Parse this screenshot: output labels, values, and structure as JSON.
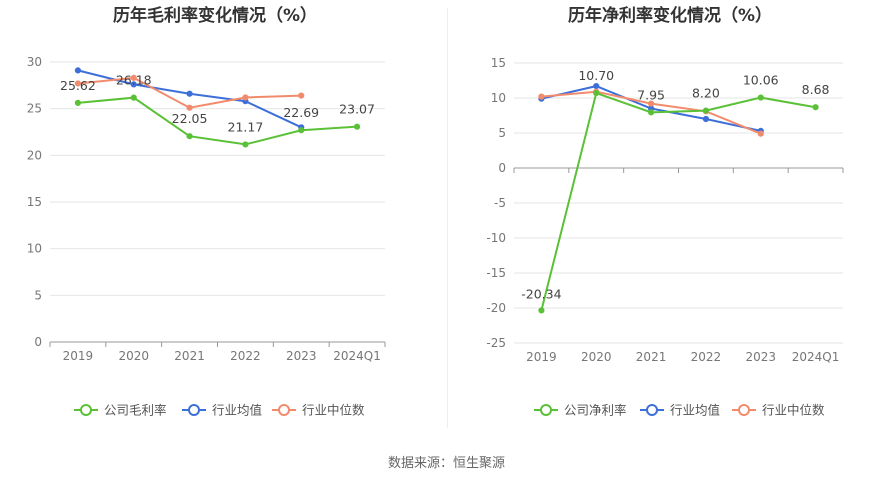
{
  "source_text": "数据来源：恒生聚源",
  "chart_data": [
    {
      "type": "line",
      "title": "历年毛利率变化情况（%）",
      "categories": [
        "2019",
        "2020",
        "2021",
        "2022",
        "2023",
        "2024Q1"
      ],
      "y_ticks": [
        0,
        5,
        10,
        15,
        20,
        25,
        30
      ],
      "ylim": [
        0,
        30
      ],
      "grid": true,
      "legend_position": "bottom",
      "series": [
        {
          "name": "公司毛利率",
          "color": "#5ac137",
          "values": [
            25.62,
            26.18,
            22.05,
            21.17,
            22.69,
            23.07
          ],
          "labels": [
            "25.62",
            "26.18",
            "22.05",
            "21.17",
            "22.69",
            "23.07"
          ]
        },
        {
          "name": "行业均值",
          "color": "#3d6fd9",
          "values": [
            29.1,
            27.6,
            26.6,
            25.8,
            23.0,
            null
          ],
          "labels": []
        },
        {
          "name": "行业中位数",
          "color": "#f28b6c",
          "values": [
            27.7,
            28.3,
            25.1,
            26.2,
            26.4,
            null
          ],
          "labels": []
        }
      ]
    },
    {
      "type": "line",
      "title": "历年净利率变化情况（%）",
      "categories": [
        "2019",
        "2020",
        "2021",
        "2022",
        "2023",
        "2024Q1"
      ],
      "y_ticks": [
        15,
        10,
        5,
        0,
        -5,
        -10,
        -15,
        -20,
        -25
      ],
      "ylim": [
        -25,
        15
      ],
      "grid": true,
      "legend_position": "bottom",
      "series": [
        {
          "name": "公司净利率",
          "color": "#5ac137",
          "values": [
            -20.34,
            10.7,
            7.95,
            8.2,
            10.06,
            8.68
          ],
          "labels": [
            "-20.34",
            "10.70",
            "7.95",
            "8.20",
            "10.06",
            "8.68"
          ]
        },
        {
          "name": "行业均值",
          "color": "#3d6fd9",
          "values": [
            9.9,
            11.7,
            8.5,
            7.0,
            5.3,
            null
          ],
          "labels": []
        },
        {
          "name": "行业中位数",
          "color": "#f28b6c",
          "values": [
            10.2,
            10.9,
            9.2,
            8.1,
            4.9,
            null
          ],
          "labels": []
        }
      ]
    }
  ]
}
